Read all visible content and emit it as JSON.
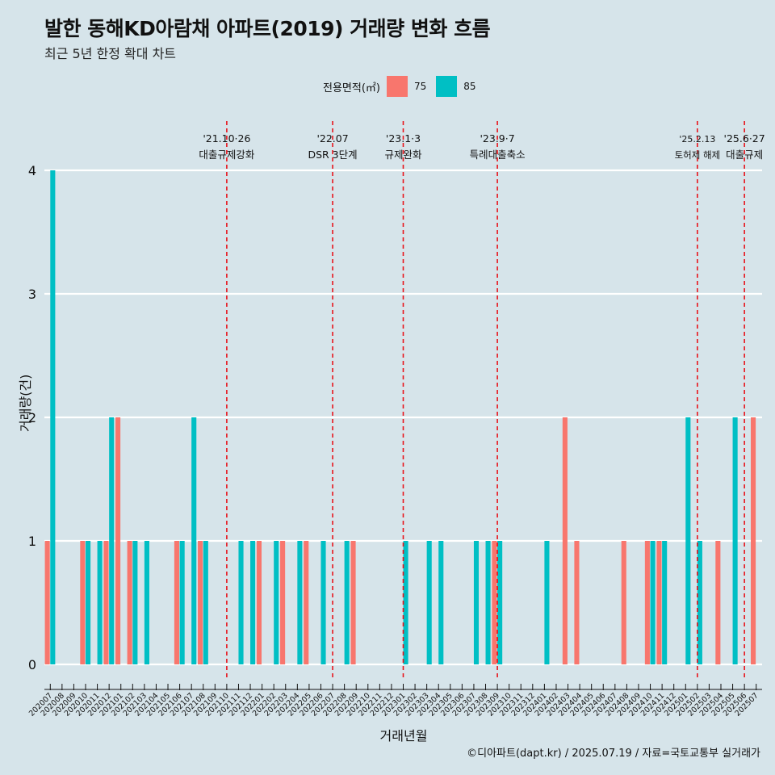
{
  "title": "발한 동해KD아람채 아파트(2019) 거래량 변화 흐름",
  "subtitle": "최근 5년 한정 확대 차트",
  "caption": "©디아파트(dapt.kr) / 2025.07.19 / 자료=국토교통부 실거래가",
  "legend": {
    "title": "전용면적(㎡)",
    "items": [
      {
        "label": "75",
        "color": "#f8766d"
      },
      {
        "label": "85",
        "color": "#00bfc4"
      }
    ]
  },
  "chart_data": {
    "type": "bar",
    "xlabel": "거래년월",
    "ylabel": "거래량(건)",
    "ylim": [
      0,
      4
    ],
    "yticks": [
      0,
      1,
      2,
      3,
      4
    ],
    "grid": true,
    "legend_position": "top",
    "categories": [
      "202007",
      "202008",
      "202009",
      "202010",
      "202011",
      "202012",
      "202101",
      "202102",
      "202103",
      "202104",
      "202105",
      "202106",
      "202107",
      "202108",
      "202109",
      "202110",
      "202111",
      "202112",
      "202201",
      "202202",
      "202203",
      "202204",
      "202205",
      "202206",
      "202207",
      "202208",
      "202209",
      "202210",
      "202211",
      "202212",
      "202301",
      "202302",
      "202303",
      "202304",
      "202305",
      "202306",
      "202307",
      "202308",
      "202309",
      "202310",
      "202311",
      "202312",
      "202401",
      "202402",
      "202403",
      "202404",
      "202405",
      "202406",
      "202407",
      "202408",
      "202409",
      "202410",
      "202411",
      "202412",
      "202501",
      "202502",
      "202503",
      "202504",
      "202505",
      "202506",
      "202507"
    ],
    "series": [
      {
        "name": "75",
        "color": "#f8766d",
        "values": [
          1,
          0,
          0,
          1,
          0,
          1,
          2,
          1,
          0,
          0,
          0,
          1,
          0,
          1,
          0,
          0,
          0,
          0,
          1,
          0,
          1,
          0,
          1,
          0,
          0,
          0,
          1,
          0,
          0,
          0,
          0,
          0,
          0,
          0,
          0,
          0,
          0,
          0,
          1,
          0,
          0,
          0,
          0,
          0,
          2,
          1,
          0,
          0,
          0,
          1,
          0,
          1,
          1,
          0,
          0,
          0,
          0,
          1,
          0,
          0,
          2
        ]
      },
      {
        "name": "85",
        "color": "#00bfc4",
        "values": [
          4,
          0,
          0,
          1,
          1,
          2,
          0,
          1,
          1,
          0,
          0,
          1,
          2,
          1,
          0,
          0,
          1,
          1,
          0,
          1,
          0,
          1,
          0,
          1,
          0,
          1,
          0,
          0,
          0,
          0,
          1,
          0,
          1,
          1,
          0,
          0,
          1,
          1,
          1,
          0,
          0,
          0,
          1,
          0,
          0,
          0,
          0,
          0,
          0,
          0,
          0,
          1,
          1,
          0,
          2,
          1,
          0,
          0,
          2,
          0,
          0
        ]
      }
    ],
    "annotations": [
      {
        "x": "202110",
        "line1": "'21.10·26",
        "line2": "대출규제강화"
      },
      {
        "x": "202207",
        "line1": "'22.07",
        "line2": "DSR 3단계"
      },
      {
        "x": "202301",
        "line1": "'23.1·3",
        "line2": "규제완화"
      },
      {
        "x": "202309",
        "line1": "'23.9·7",
        "line2": "특례대출축소"
      },
      {
        "x": "202502",
        "line1": "'25.2.13",
        "line2": "토허제 해제"
      },
      {
        "x": "202506",
        "line1": "'25.6·27",
        "line2": "대출규제"
      }
    ]
  }
}
